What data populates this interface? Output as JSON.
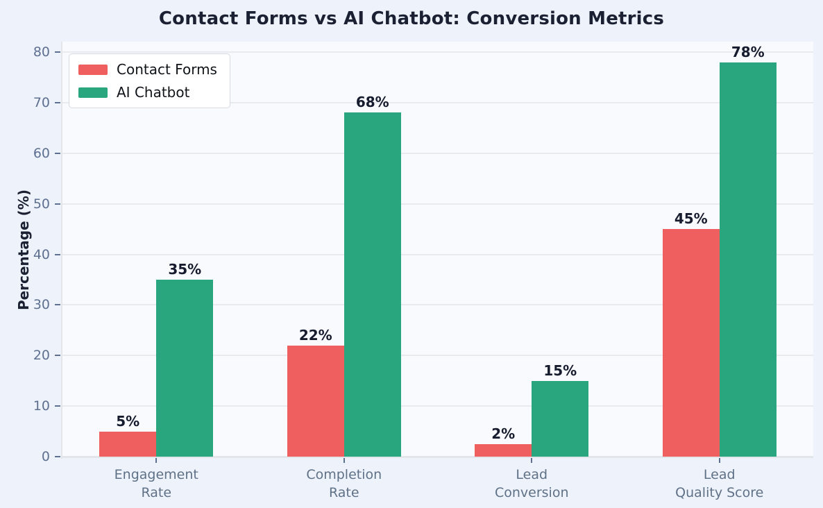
{
  "chart_data": {
    "type": "bar",
    "title": "Contact Forms vs AI Chatbot: Conversion Metrics",
    "ylabel": "Percentage (%)",
    "xlabel": "",
    "ylim": [
      0,
      80
    ],
    "yticks": [
      0,
      10,
      20,
      30,
      40,
      50,
      60,
      70,
      80
    ],
    "categories": [
      "Engagement\nRate",
      "Completion\nRate",
      "Lead\nConversion",
      "Lead\nQuality Score"
    ],
    "series": [
      {
        "name": "Contact Forms",
        "color": "#f05f5f",
        "values": [
          5,
          22,
          2.5,
          45
        ],
        "value_labels": [
          "5%",
          "22%",
          "2%",
          "45%"
        ]
      },
      {
        "name": "AI Chatbot",
        "color": "#2aa67e",
        "values": [
          35,
          68,
          15,
          78
        ],
        "value_labels": [
          "35%",
          "68%",
          "15%",
          "78%"
        ]
      }
    ],
    "grid": "horizontal",
    "legend_position": "upper-left",
    "colors": {
      "figure_bg": "#eef2fa",
      "plot_bg": "#f9fafd",
      "grid": "#e8eaf0",
      "spine": "#e2e5ea",
      "tick": "#5e7090",
      "category_label": "#5f7187",
      "value_label": "#161b2e",
      "title": "#1b2032",
      "legend_bg": "#ffffff",
      "legend_border": "#d7d9de"
    }
  }
}
